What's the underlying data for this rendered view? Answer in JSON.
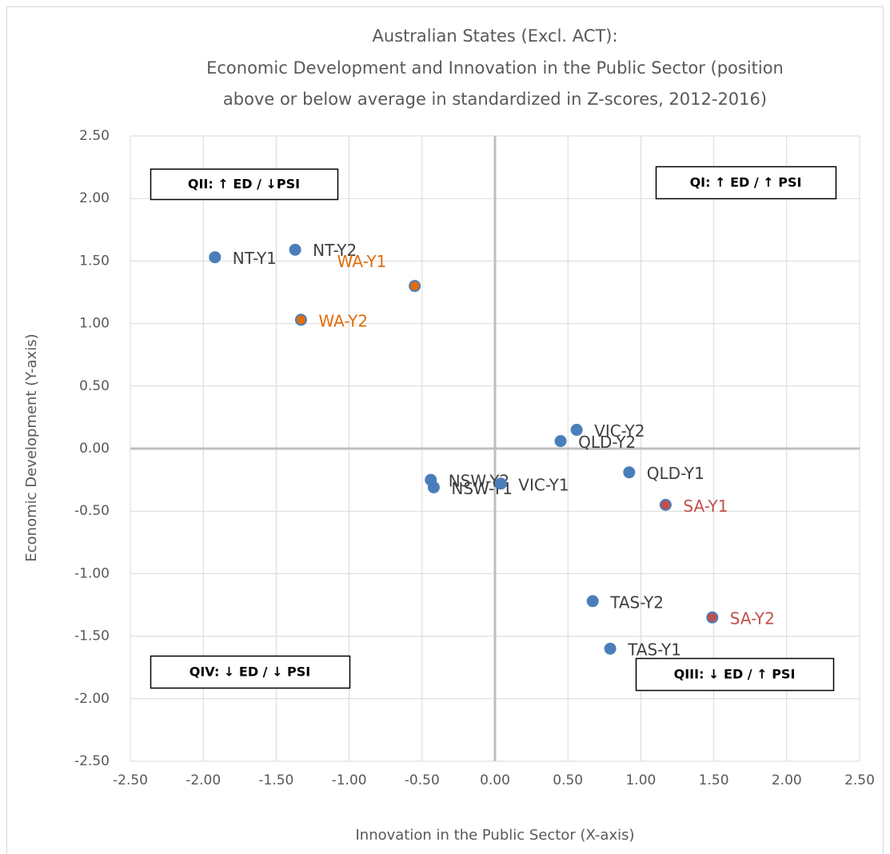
{
  "chart_data": {
    "type": "scatter",
    "title": [
      "Australian States (Excl. ACT):",
      "Economic Development and Innovation in the Public Sector (position",
      "above or below average in standardized in Z-scores, 2012-2016)"
    ],
    "x_label": "Innovation in the Public Sector (X-axis)",
    "y_label": "Economic Development (Y-axis)",
    "point_labels": [
      "NT-Y1",
      "NT-Y2",
      "WA-Y1",
      "WA-Y2",
      "VIC-Y2",
      "QLD-Y2",
      "QLD-Y1",
      "NSW-Y2",
      "NSW-Y1",
      "VIC-Y1",
      "SA-Y1",
      "TAS-Y2",
      "SA-Y2",
      "TAS-Y1"
    ],
    "x": [
      -1.92,
      -1.37,
      -0.55,
      -1.33,
      0.56,
      0.45,
      0.92,
      -0.44,
      -0.42,
      0.04,
      1.17,
      0.67,
      1.49,
      0.79
    ],
    "y": [
      1.53,
      1.59,
      1.3,
      1.03,
      0.15,
      0.06,
      -0.19,
      -0.25,
      -0.31,
      -0.28,
      -0.45,
      -1.22,
      -1.35,
      -1.6
    ],
    "colors": [
      "#4a7ebb",
      "#4a7ebb",
      "#e36c0a",
      "#e36c0a",
      "#4a7ebb",
      "#4a7ebb",
      "#4a7ebb",
      "#4a7ebb",
      "#4a7ebb",
      "#4a7ebb",
      "#c0504d",
      "#4a7ebb",
      "#c0504d",
      "#4a7ebb"
    ],
    "label_colors": [
      "#404040",
      "#404040",
      "#e36c0a",
      "#e36c0a",
      "#404040",
      "#404040",
      "#404040",
      "#404040",
      "#404040",
      "#404040",
      "#c0504d",
      "#404040",
      "#c0504d",
      "#404040"
    ],
    "edge_color": "#4a7ebb",
    "annotations": [
      "QII: ↑ ED / ↓PSI",
      "QI: ↑ ED / ↑ PSI",
      "QIV: ↓ ED / ↓ PSI",
      "QIII: ↓ ED / ↑ PSI"
    ],
    "xlim": [
      -2.5,
      2.5
    ],
    "ylim": [
      -2.5,
      2.5
    ],
    "xticks": [
      {
        "value": -2.5,
        "label": "-2.50"
      },
      {
        "value": -2,
        "label": "-2.00"
      },
      {
        "value": -1.5,
        "label": "-1.50"
      },
      {
        "value": -1,
        "label": "-1.00"
      },
      {
        "value": -0.5,
        "label": "-0.50"
      },
      {
        "value": 0,
        "label": "0.00"
      },
      {
        "value": 0.5,
        "label": "0.50"
      },
      {
        "value": 1,
        "label": "1.00"
      },
      {
        "value": 1.5,
        "label": "1.50"
      },
      {
        "value": 2,
        "label": "2.00"
      },
      {
        "value": 2.5,
        "label": "2.50"
      }
    ],
    "yticks": [
      {
        "value": -2.5,
        "label": "-2.50"
      },
      {
        "value": -2,
        "label": "-2.00"
      },
      {
        "value": -1.5,
        "label": "-1.50"
      },
      {
        "value": -1,
        "label": "-1.00"
      },
      {
        "value": -0.5,
        "label": "-0.50"
      },
      {
        "value": 0,
        "label": "0.00"
      },
      {
        "value": 0.5,
        "label": "0.50"
      },
      {
        "value": 1,
        "label": "1.00"
      },
      {
        "value": 1.5,
        "label": "1.50"
      },
      {
        "value": 2,
        "label": "2.00"
      },
      {
        "value": 2.5,
        "label": "2.50"
      }
    ],
    "grid": true
  }
}
